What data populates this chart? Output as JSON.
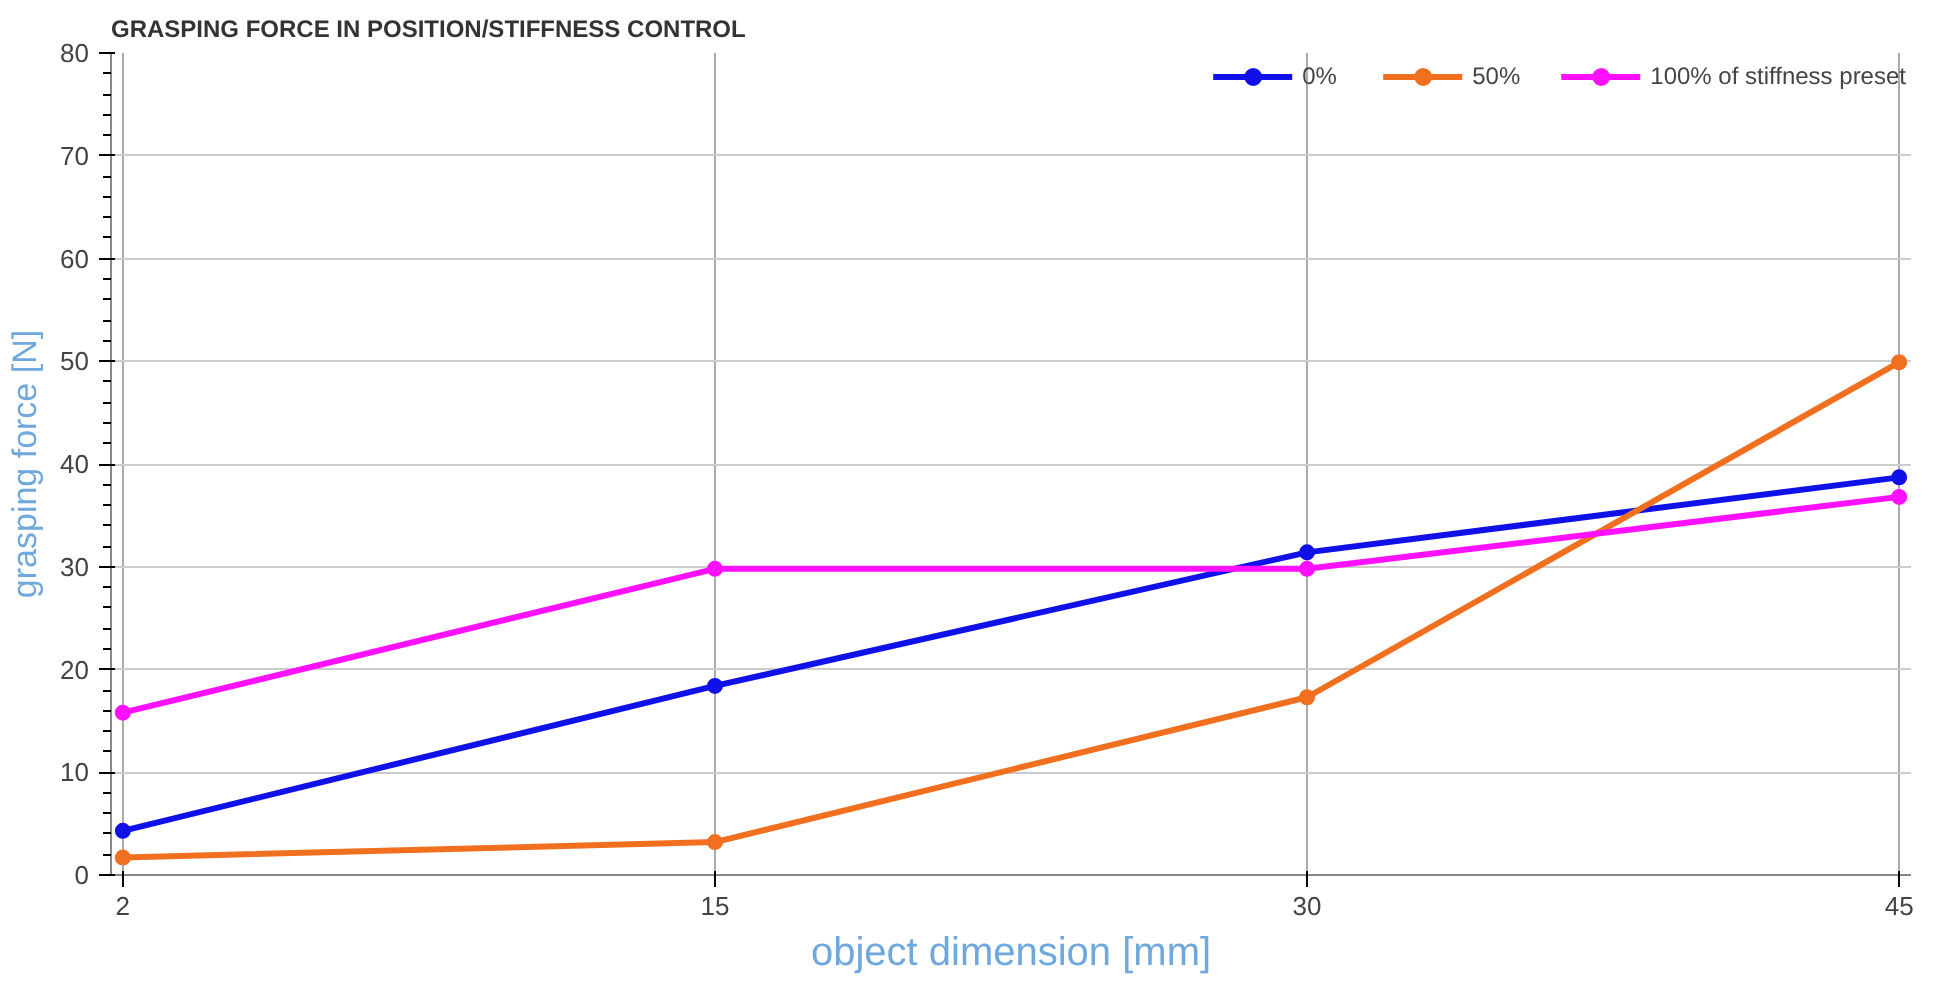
{
  "chart_data": {
    "type": "line",
    "title": "GRASPING FORCE IN POSITION/STIFFNESS CONTROL",
    "xlabel": "object dimension [mm]",
    "ylabel": "grasping force [N]",
    "categories": [
      "2",
      "15",
      "30",
      "45"
    ],
    "series": [
      {
        "name": "0%",
        "color": "#1010e8",
        "values": [
          4.3,
          18.4,
          31.4,
          38.7
        ]
      },
      {
        "name": "50%",
        "color": "#f07020",
        "values": [
          1.7,
          3.2,
          17.3,
          49.9
        ]
      },
      {
        "name": "100% of stiffness preset",
        "color": "#ff10ff",
        "values": [
          15.8,
          29.8,
          29.8,
          36.8
        ]
      }
    ],
    "ylim": [
      0,
      80
    ],
    "yticks": [
      0,
      10,
      20,
      30,
      40,
      50,
      60,
      70,
      80
    ],
    "grid": true,
    "legend": "top right",
    "marker": "circle",
    "line_style": "solid"
  }
}
